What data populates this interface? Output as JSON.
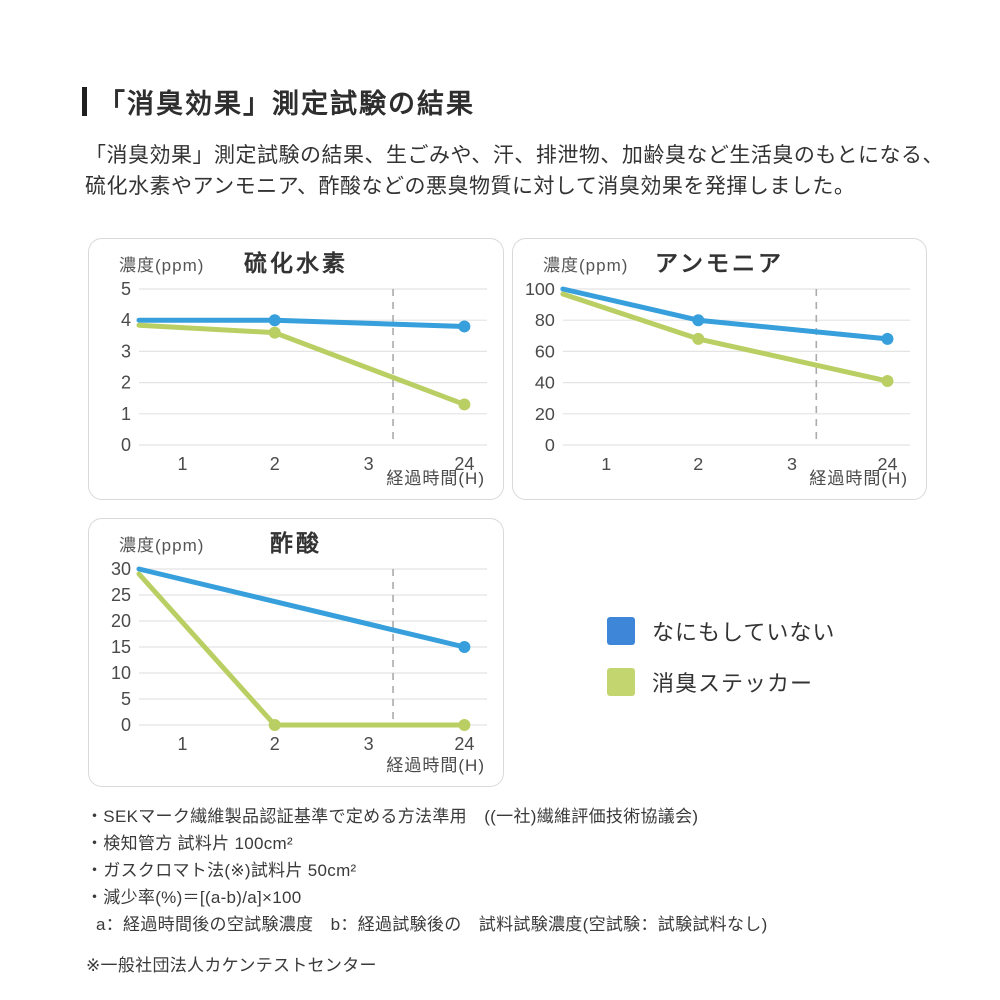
{
  "header": {
    "title": "「消臭効果」測定試験の結果"
  },
  "intro": {
    "lines": [
      "「消臭効果」測定試験の結果、生ごみや、汗、排泄物、加齢臭など生活臭のもとになる、",
      "硫化水素やアンモニア、酢酸などの悪臭物質に対して消臭効果を発揮しました。"
    ]
  },
  "colors": {
    "line_blue": "#379fdb",
    "line_green": "#bacf63",
    "legend_blue": "#3e86d8",
    "legend_green": "#c3d56f",
    "grid": "#e4e4e4",
    "dashed": "#ababab"
  },
  "chart_data": [
    {
      "type": "line",
      "title": "硫化水素",
      "ylabel": "濃度(ppm)",
      "xlabel": "経過時間(H)",
      "x_tick_labels": [
        "1",
        "2",
        "3",
        "24"
      ],
      "y_ticks": [
        5,
        4,
        3,
        2,
        1,
        0
      ],
      "ylim": [
        0,
        5
      ],
      "axis_break_dashed_line": true,
      "grid": true,
      "series": [
        {
          "name": "なにもしていない",
          "color": "#379fdb",
          "x": [
            0,
            2,
            24
          ],
          "values": [
            4,
            4,
            3.8
          ]
        },
        {
          "name": "消臭ステッカー",
          "color": "#bacf63",
          "x": [
            0,
            2,
            24
          ],
          "values": [
            4,
            3.6,
            1.3
          ]
        }
      ]
    },
    {
      "type": "line",
      "title": "アンモニア",
      "ylabel": "濃度(ppm)",
      "xlabel": "経過時間(H)",
      "x_tick_labels": [
        "1",
        "2",
        "3",
        "24"
      ],
      "y_ticks": [
        100,
        80,
        60,
        40,
        20,
        0
      ],
      "ylim": [
        0,
        100
      ],
      "axis_break_dashed_line": true,
      "grid": true,
      "series": [
        {
          "name": "なにもしていない",
          "color": "#379fdb",
          "x": [
            0,
            2,
            24
          ],
          "values": [
            100,
            80,
            68
          ]
        },
        {
          "name": "消臭ステッカー",
          "color": "#bacf63",
          "x": [
            0,
            2,
            24
          ],
          "values": [
            100,
            68,
            41
          ]
        }
      ]
    },
    {
      "type": "line",
      "title": "酢酸",
      "ylabel": "濃度(ppm)",
      "xlabel": "経過時間(H)",
      "x_tick_labels": [
        "1",
        "2",
        "3",
        "24"
      ],
      "y_ticks": [
        30,
        25,
        20,
        15,
        10,
        5,
        0
      ],
      "ylim": [
        0,
        30
      ],
      "axis_break_dashed_line": true,
      "grid": true,
      "series": [
        {
          "name": "なにもしていない",
          "color": "#379fdb",
          "x": [
            0,
            24
          ],
          "values": [
            30,
            15
          ]
        },
        {
          "name": "消臭ステッカー",
          "color": "#bacf63",
          "x": [
            0,
            2,
            24
          ],
          "values": [
            30,
            0,
            0
          ]
        }
      ]
    }
  ],
  "legend": {
    "items": [
      {
        "label": "なにもしていない",
        "color": "#3e86d8"
      },
      {
        "label": "消臭ステッカー",
        "color": "#c3d56f"
      }
    ]
  },
  "footnotes": {
    "bullets": [
      "・SEKマーク繊維製品認証基準で定める方法準用　((一社)繊維評価技術協議会)",
      "・検知管方 試料片 100cm²",
      "・ガスクロマト法(※)試料片 50cm²",
      "・減少率(%)＝[(a-b)/a]×100"
    ],
    "sub_line": "a：経過時間後の空試験濃度　b：経過試験後の　試料試験濃度(空試験：試験試料なし)",
    "source": "※一般社団法人カケンテストセンター"
  }
}
